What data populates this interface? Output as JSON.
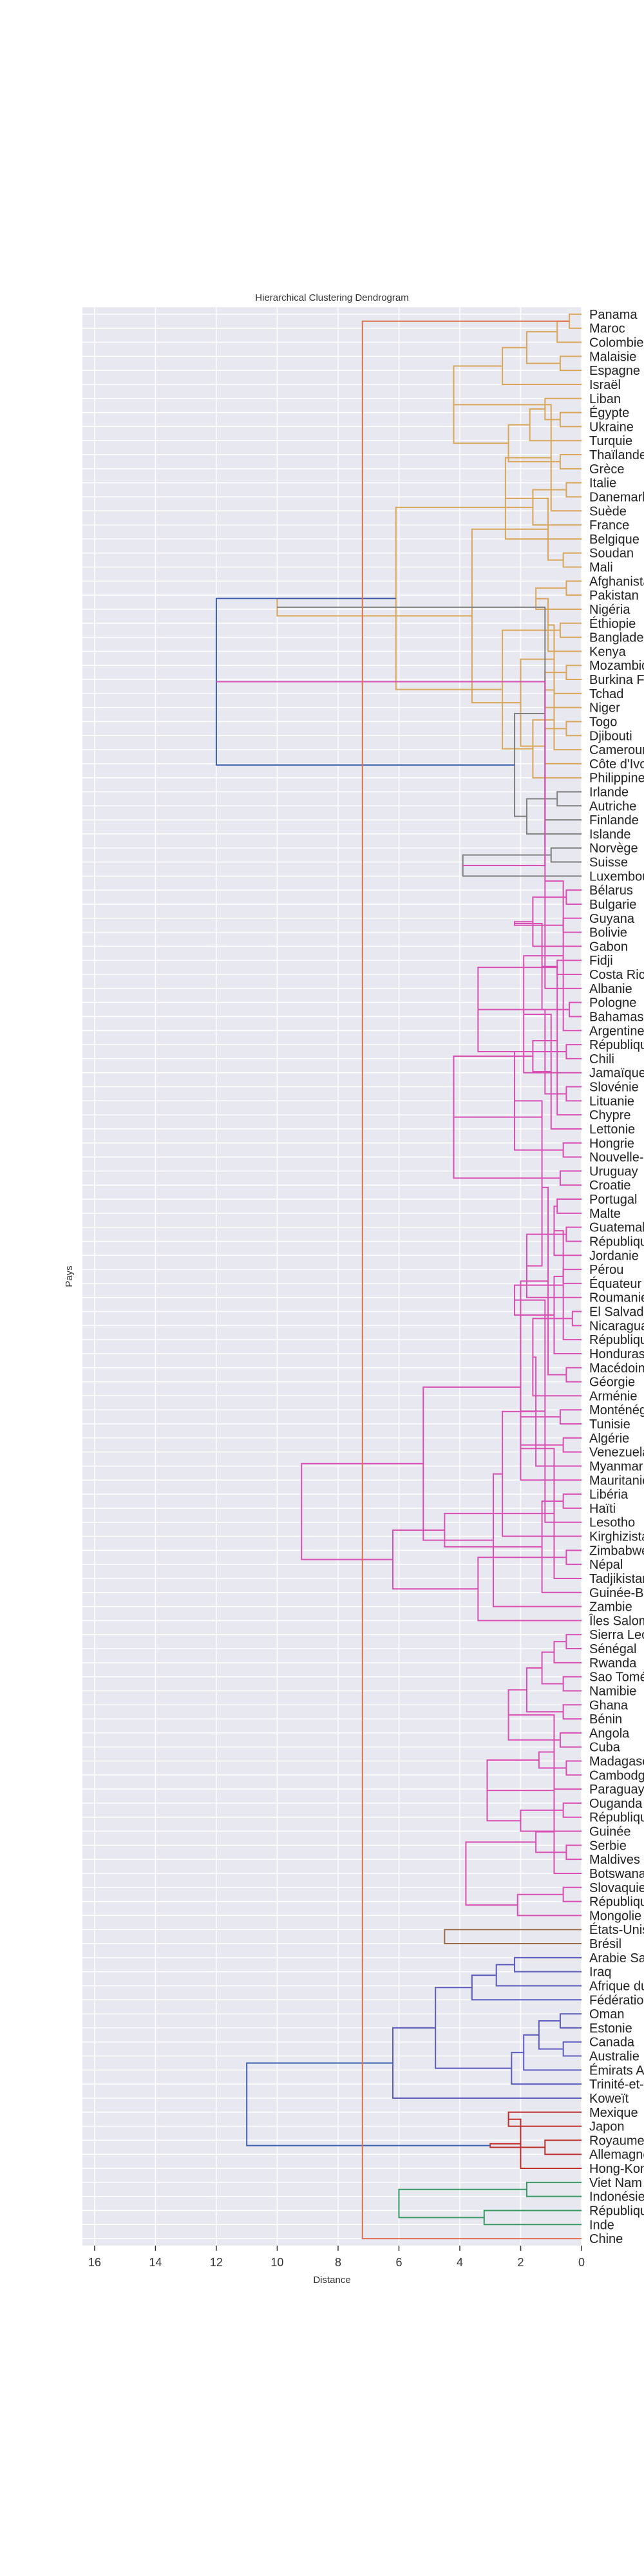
{
  "chart_data": {
    "type": "dendrogram",
    "title": "Hierarchical Clustering Dendrogram",
    "xlabel": "Distance",
    "ylabel": "Pays",
    "orientation": "right-to-left",
    "xlim": [
      16.4,
      0
    ],
    "xticks": [
      16,
      14,
      12,
      10,
      8,
      6,
      4,
      2,
      0
    ],
    "grid": true,
    "background_color": "#e8e8f0",
    "grid_color": "#ffffff",
    "colors": {
      "orange": "#d9a65a",
      "gray": "#808080",
      "pink": "#d94fb4",
      "brown": "#9b6b4a",
      "purple": "#5c5cc0",
      "red": "#c0302a",
      "green": "#3a9a66",
      "salmon": "#e07050",
      "blue": "#3a5fb0"
    },
    "leaves": [
      "Panama",
      "Maroc",
      "Colombie",
      "Malaisie",
      "Espagne",
      "Israël",
      "Liban",
      "Égypte",
      "Ukraine",
      "Turquie",
      "Thaïlande",
      "Grèce",
      "Italie",
      "Danemark",
      "Suède",
      "France",
      "Belgique",
      "Soudan",
      "Mali",
      "Afghanistan",
      "Pakistan",
      "Nigéria",
      "Éthiopie",
      "Bangladesh",
      "Kenya",
      "Mozambique",
      "Burkina Faso",
      "Tchad",
      "Niger",
      "Togo",
      "Djibouti",
      "Cameroun",
      "Côte d'Ivoire",
      "Philippines",
      "Irlande",
      "Autriche",
      "Finlande",
      "Islande",
      "Norvège",
      "Suisse",
      "Luxembourg",
      "Bélarus",
      "Bulgarie",
      "Guyana",
      "Bolivie",
      "Gabon",
      "Fidji",
      "Costa Rica",
      "Albanie",
      "Pologne",
      "Bahamas",
      "Argentine",
      "République dominicaine",
      "Chili",
      "Jamaïque",
      "Slovénie",
      "Lituanie",
      "Chypre",
      "Lettonie",
      "Hongrie",
      "Nouvelle-Zélande",
      "Uruguay",
      "Croatie",
      "Portugal",
      "Malte",
      "Guatemala",
      "République tchèque",
      "Jordanie",
      "Pérou",
      "Équateur",
      "Roumanie",
      "El Salvador",
      "Nicaragua",
      "République de Moldova",
      "Honduras",
      "Macédoine",
      "Géorgie",
      "Arménie",
      "Monténégro",
      "Tunisie",
      "Algérie",
      "Venezuela",
      "Myanmar",
      "Mauritanie",
      "Libéria",
      "Haïti",
      "Lesotho",
      "Kirghizistan",
      "Zimbabwe",
      "Népal",
      "Tadjikistan",
      "Guinée-Bissau",
      "Zambie",
      "Îles Salomon",
      "Sierra Leone",
      "Sénégal",
      "Rwanda",
      "Sao Tomé-et-Principe",
      "Namibie",
      "Ghana",
      "Bénin",
      "Angola",
      "Cuba",
      "Madagascar",
      "Cambodge",
      "Paraguay",
      "Ouganda",
      "République centrafricaine",
      "Guinée",
      "Serbie",
      "Maldives",
      "Botswana",
      "Slovaquie",
      "République du Congo",
      "Mongolie",
      "États-Unis",
      "Brésil",
      "Arabie Saoudite",
      "Iraq",
      "Afrique du Sud",
      "Fédération de Russie",
      "Oman",
      "Estonie",
      "Canada",
      "Australie",
      "Émirats Arabes Unis",
      "Trinité-et-Tobago",
      "Koweït",
      "Mexique",
      "Japon",
      "Royaume-Uni",
      "Allemagne",
      "Hong-Kong",
      "Viet Nam",
      "Indonésie",
      "République de Corée",
      "Inde",
      "Chine"
    ],
    "merges": [
      [
        0,
        1,
        0.4,
        "orange"
      ],
      [
        2,
        138,
        0.8,
        "orange"
      ],
      [
        3,
        4,
        0.7,
        "orange"
      ],
      [
        139,
        140,
        1.8,
        "orange"
      ],
      [
        5,
        141,
        2.6,
        "orange"
      ],
      [
        7,
        8,
        0.7,
        "orange"
      ],
      [
        6,
        143,
        1.2,
        "orange"
      ],
      [
        144,
        9,
        1.7,
        "orange"
      ],
      [
        10,
        11,
        0.7,
        "orange"
      ],
      [
        145,
        146,
        2.4,
        "orange"
      ],
      [
        142,
        147,
        4.2,
        "orange"
      ],
      [
        12,
        13,
        0.5,
        "orange"
      ],
      [
        148,
        14,
        1.0,
        "orange"
      ],
      [
        149,
        15,
        1.6,
        "orange"
      ],
      [
        150,
        16,
        2.5,
        "orange"
      ],
      [
        17,
        18,
        0.6,
        "orange"
      ],
      [
        19,
        20,
        0.5,
        "orange"
      ],
      [
        152,
        153,
        1.1,
        "orange"
      ],
      [
        154,
        21,
        1.5,
        "orange"
      ],
      [
        22,
        23,
        0.7,
        "orange"
      ],
      [
        156,
        24,
        1.1,
        "orange"
      ],
      [
        25,
        26,
        0.5,
        "orange"
      ],
      [
        158,
        27,
        0.9,
        "orange"
      ],
      [
        159,
        28,
        1.2,
        "orange"
      ],
      [
        29,
        30,
        0.5,
        "orange"
      ],
      [
        161,
        31,
        0.9,
        "orange"
      ],
      [
        162,
        32,
        1.2,
        "orange"
      ],
      [
        163,
        33,
        1.6,
        "orange"
      ],
      [
        160,
        164,
        2.0,
        "orange"
      ],
      [
        157,
        165,
        2.6,
        "orange"
      ],
      [
        155,
        166,
        3.6,
        "orange"
      ],
      [
        151,
        167,
        6.1,
        "orange"
      ],
      [
        168,
        169,
        10.0,
        "orange"
      ],
      [
        34,
        35,
        0.8,
        "gray"
      ],
      [
        170,
        36,
        1.2,
        "gray"
      ],
      [
        171,
        37,
        1.8,
        "gray"
      ],
      [
        38,
        39,
        1.0,
        "gray"
      ],
      [
        172,
        173,
        2.2,
        "gray"
      ],
      [
        174,
        40,
        3.9,
        "gray"
      ],
      [
        169,
        175,
        12.0,
        "blue"
      ],
      [
        41,
        42,
        0.5,
        "pink"
      ],
      [
        43,
        44,
        0.6,
        "pink"
      ],
      [
        176,
        177,
        1.2,
        "pink"
      ],
      [
        178,
        45,
        1.6,
        "pink"
      ],
      [
        46,
        47,
        0.8,
        "pink"
      ],
      [
        48,
        180,
        1.2,
        "pink"
      ],
      [
        179,
        181,
        2.2,
        "pink"
      ],
      [
        49,
        50,
        0.4,
        "pink"
      ],
      [
        183,
        51,
        0.6,
        "pink"
      ],
      [
        52,
        53,
        0.5,
        "pink"
      ],
      [
        184,
        185,
        1.3,
        "pink"
      ],
      [
        186,
        54,
        1.9,
        "pink"
      ],
      [
        182,
        187,
        3.4,
        "pink"
      ],
      [
        55,
        56,
        0.5,
        "pink"
      ],
      [
        188,
        57,
        0.8,
        "pink"
      ],
      [
        189,
        58,
        1.0,
        "pink"
      ],
      [
        59,
        60,
        0.6,
        "pink"
      ],
      [
        190,
        191,
        1.2,
        "pink"
      ],
      [
        61,
        62,
        0.7,
        "pink"
      ],
      [
        192,
        193,
        1.6,
        "pink"
      ],
      [
        63,
        64,
        0.8,
        "pink"
      ],
      [
        194,
        195,
        2.2,
        "pink"
      ],
      [
        196,
        197,
        4.2,
        "pink"
      ],
      [
        65,
        66,
        0.5,
        "pink"
      ],
      [
        198,
        67,
        0.9,
        "pink"
      ],
      [
        68,
        69,
        0.6,
        "pink"
      ],
      [
        199,
        200,
        1.3,
        "pink"
      ],
      [
        201,
        70,
        1.8,
        "pink"
      ],
      [
        71,
        72,
        0.3,
        "pink"
      ],
      [
        202,
        73,
        0.6,
        "pink"
      ],
      [
        203,
        74,
        0.9,
        "pink"
      ],
      [
        75,
        76,
        0.5,
        "pink"
      ],
      [
        204,
        205,
        1.3,
        "pink"
      ],
      [
        206,
        77,
        1.6,
        "pink"
      ],
      [
        78,
        79,
        0.7,
        "pink"
      ],
      [
        207,
        208,
        2.2,
        "pink"
      ],
      [
        80,
        81,
        0.6,
        "pink"
      ],
      [
        209,
        210,
        1.1,
        "pink"
      ],
      [
        211,
        82,
        1.5,
        "pink"
      ],
      [
        212,
        83,
        2.0,
        "pink"
      ],
      [
        84,
        85,
        0.6,
        "pink"
      ],
      [
        213,
        86,
        1.2,
        "pink"
      ],
      [
        214,
        215,
        2.0,
        "pink"
      ],
      [
        216,
        87,
        2.6,
        "pink"
      ],
      [
        88,
        89,
        0.5,
        "pink"
      ],
      [
        217,
        90,
        0.9,
        "pink"
      ],
      [
        218,
        91,
        1.3,
        "pink"
      ],
      [
        219,
        220,
        2.0,
        "pink"
      ],
      [
        221,
        92,
        2.9,
        "pink"
      ],
      [
        222,
        93,
        3.4,
        "pink"
      ],
      [
        223,
        224,
        4.5,
        "pink"
      ],
      [
        225,
        226,
        5.2,
        "pink"
      ],
      [
        227,
        228,
        6.2,
        "pink"
      ],
      [
        229,
        230,
        9.2,
        "pink"
      ],
      [
        231,
        232,
        13.0,
        "blue"
      ],
      [
        94,
        95,
        0.5,
        "pink"
      ],
      [
        233,
        96,
        0.9,
        "pink"
      ],
      [
        97,
        98,
        0.6,
        "pink"
      ],
      [
        234,
        235,
        1.3,
        "pink"
      ],
      [
        99,
        100,
        0.6,
        "pink"
      ],
      [
        236,
        237,
        1.8,
        "pink"
      ],
      [
        101,
        102,
        0.7,
        "pink"
      ],
      [
        238,
        239,
        2.4,
        "pink"
      ],
      [
        103,
        104,
        0.5,
        "pink"
      ],
      [
        240,
        105,
        0.9,
        "pink"
      ],
      [
        106,
        107,
        0.6,
        "pink"
      ],
      [
        241,
        242,
        1.4,
        "pink"
      ],
      [
        243,
        108,
        2.0,
        "pink"
      ],
      [
        244,
        245,
        3.1,
        "pink"
      ],
      [
        109,
        110,
        0.5,
        "pink"
      ],
      [
        246,
        111,
        0.9,
        "pink"
      ],
      [
        112,
        113,
        0.6,
        "pink"
      ],
      [
        247,
        248,
        1.5,
        "pink"
      ],
      [
        249,
        114,
        2.1,
        "pink"
      ],
      [
        250,
        251,
        3.8,
        "pink"
      ],
      [
        252,
        253,
        5.0,
        "pink"
      ],
      [
        254,
        255,
        7.8,
        "pink"
      ],
      [
        115,
        116,
        4.5,
        "brown"
      ],
      [
        117,
        118,
        2.2,
        "purple"
      ],
      [
        256,
        119,
        2.8,
        "purple"
      ],
      [
        257,
        120,
        3.6,
        "purple"
      ],
      [
        121,
        122,
        0.7,
        "purple"
      ],
      [
        123,
        124,
        0.6,
        "purple"
      ],
      [
        259,
        260,
        1.4,
        "purple"
      ],
      [
        261,
        125,
        1.9,
        "purple"
      ],
      [
        262,
        126,
        2.3,
        "purple"
      ],
      [
        258,
        263,
        4.8,
        "purple"
      ],
      [
        264,
        127,
        6.2,
        "purple"
      ],
      [
        128,
        129,
        2.4,
        "red"
      ],
      [
        130,
        131,
        1.2,
        "red"
      ],
      [
        266,
        132,
        2.0,
        "red"
      ],
      [
        267,
        268,
        3.0,
        "red"
      ],
      [
        265,
        269,
        11.0,
        "blue"
      ],
      [
        133,
        134,
        1.8,
        "green"
      ],
      [
        135,
        136,
        3.2,
        "green"
      ],
      [
        271,
        272,
        6.0,
        "green"
      ],
      [
        137,
        138,
        7.2,
        "salmon"
      ]
    ],
    "links_top": [
      [
        170,
        175,
        12.0,
        "blue"
      ],
      [
        176,
        233,
        13.0,
        "blue"
      ]
    ]
  }
}
